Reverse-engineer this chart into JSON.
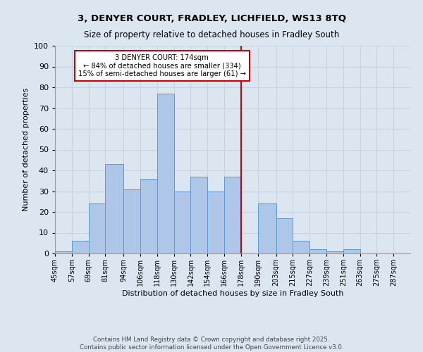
{
  "title_line1": "3, DENYER COURT, FRADLEY, LICHFIELD, WS13 8TQ",
  "title_line2": "Size of property relative to detached houses in Fradley South",
  "xlabel": "Distribution of detached houses by size in Fradley South",
  "ylabel": "Number of detached properties",
  "bin_labels": [
    "45sqm",
    "57sqm",
    "69sqm",
    "81sqm",
    "94sqm",
    "106sqm",
    "118sqm",
    "130sqm",
    "142sqm",
    "154sqm",
    "166sqm",
    "178sqm",
    "190sqm",
    "203sqm",
    "215sqm",
    "227sqm",
    "239sqm",
    "251sqm",
    "263sqm",
    "275sqm",
    "287sqm"
  ],
  "bar_heights": [
    1,
    6,
    24,
    43,
    31,
    36,
    77,
    30,
    37,
    30,
    37,
    0,
    24,
    17,
    6,
    2,
    1,
    2,
    0,
    0,
    0
  ],
  "bar_color": "#aec6e8",
  "bar_edge_color": "#5b9bd5",
  "grid_color": "#c8d4e3",
  "bg_color": "#dce6f1",
  "plot_bg_color": "#dce6f1",
  "vline_x_index": 11,
  "vline_color": "#cc0000",
  "annotation_text": "3 DENYER COURT: 174sqm\n← 84% of detached houses are smaller (334)\n15% of semi-detached houses are larger (61) →",
  "annotation_box_color": "#ffffff",
  "annotation_box_edge": "#cc0000",
  "footer": "Contains HM Land Registry data © Crown copyright and database right 2025.\nContains public sector information licensed under the Open Government Licence v3.0.",
  "ylim": [
    0,
    100
  ],
  "bin_edges": [
    45,
    57,
    69,
    81,
    94,
    106,
    118,
    130,
    142,
    154,
    166,
    178,
    190,
    203,
    215,
    227,
    239,
    251,
    263,
    275,
    287,
    299
  ]
}
